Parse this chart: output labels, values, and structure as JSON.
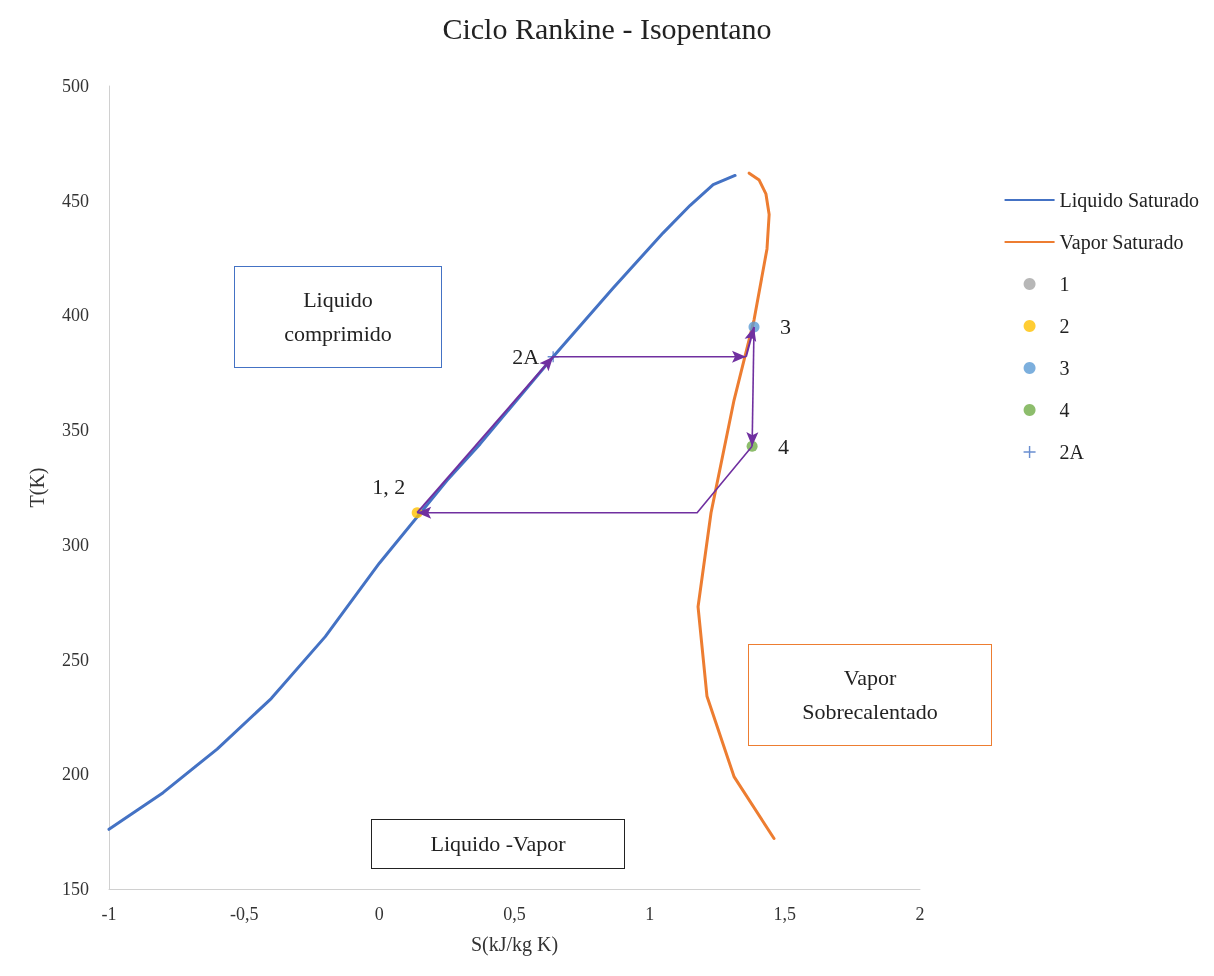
{
  "chart_data": {
    "type": "line",
    "title": "Ciclo Rankine - Isopentano",
    "xlabel": "S(kJ/kg K)",
    "ylabel": "T(K)",
    "xlim": [
      -1,
      2
    ],
    "xticks": [
      -1,
      {
        "value": -0.5,
        "label": "-0,5"
      },
      0,
      {
        "value": 0.5,
        "label": "0,5"
      },
      1,
      {
        "value": 1.5,
        "label": "1,5"
      },
      2
    ],
    "ylim": [
      150,
      500
    ],
    "yticks": [
      150,
      200,
      250,
      300,
      350,
      400,
      450,
      500
    ],
    "legend": "right",
    "series": [
      {
        "name": "Liquido Saturado",
        "marker": "none",
        "color": "#4472c4",
        "x": [
          -1,
          -0.8,
          -0.6,
          -0.4,
          -0.2,
          0,
          0.25,
          0.373,
          0.643,
          0.865,
          1.05,
          1.15,
          1.235,
          1.316
        ],
        "values": [
          176,
          192,
          211,
          233,
          260,
          292,
          328,
          344,
          382,
          412,
          436,
          448,
          457,
          461
        ]
      },
      {
        "name": "Vapor Saturado",
        "marker": "none",
        "color": "#ed7d31",
        "x": [
          1.368,
          1.405,
          1.43,
          1.442,
          1.434,
          1.386,
          1.312,
          1.227,
          1.179,
          1.212,
          1.312,
          1.46
        ],
        "values": [
          462,
          459,
          453,
          444,
          429,
          398,
          363,
          314,
          273,
          234,
          199,
          172
        ]
      },
      {
        "name": "1",
        "type": "scatter",
        "marker": "circle",
        "color": "#a5a5a5",
        "x": [
          null
        ],
        "values": [
          null
        ]
      },
      {
        "name": "2",
        "type": "scatter",
        "marker": "circle",
        "color": "#ffc000",
        "x": [
          0.14
        ],
        "values": [
          314
        ]
      },
      {
        "name": "3",
        "type": "scatter",
        "marker": "circle",
        "color": "#5b9bd5",
        "x": [
          1.386
        ],
        "values": [
          395
        ]
      },
      {
        "name": "4",
        "type": "scatter",
        "marker": "circle",
        "color": "#70ad47",
        "x": [
          1.379
        ],
        "values": [
          343
        ]
      },
      {
        "name": "2A",
        "type": "scatter",
        "marker": "cross",
        "color": "#4472c4",
        "x": [
          0.643
        ],
        "values": [
          382
        ]
      }
    ],
    "annotations": [
      {
        "text": "1, 2",
        "x": 0.14,
        "y": 314
      },
      {
        "text": "2A",
        "x": 0.643,
        "y": 382
      },
      {
        "text": "3",
        "x": 1.386,
        "y": 395
      },
      {
        "text": "4",
        "x": 1.379,
        "y": 343
      },
      "Liquido comprimido",
      "Vapor Sobrecalentado",
      "Liquido -Vapor"
    ]
  }
}
